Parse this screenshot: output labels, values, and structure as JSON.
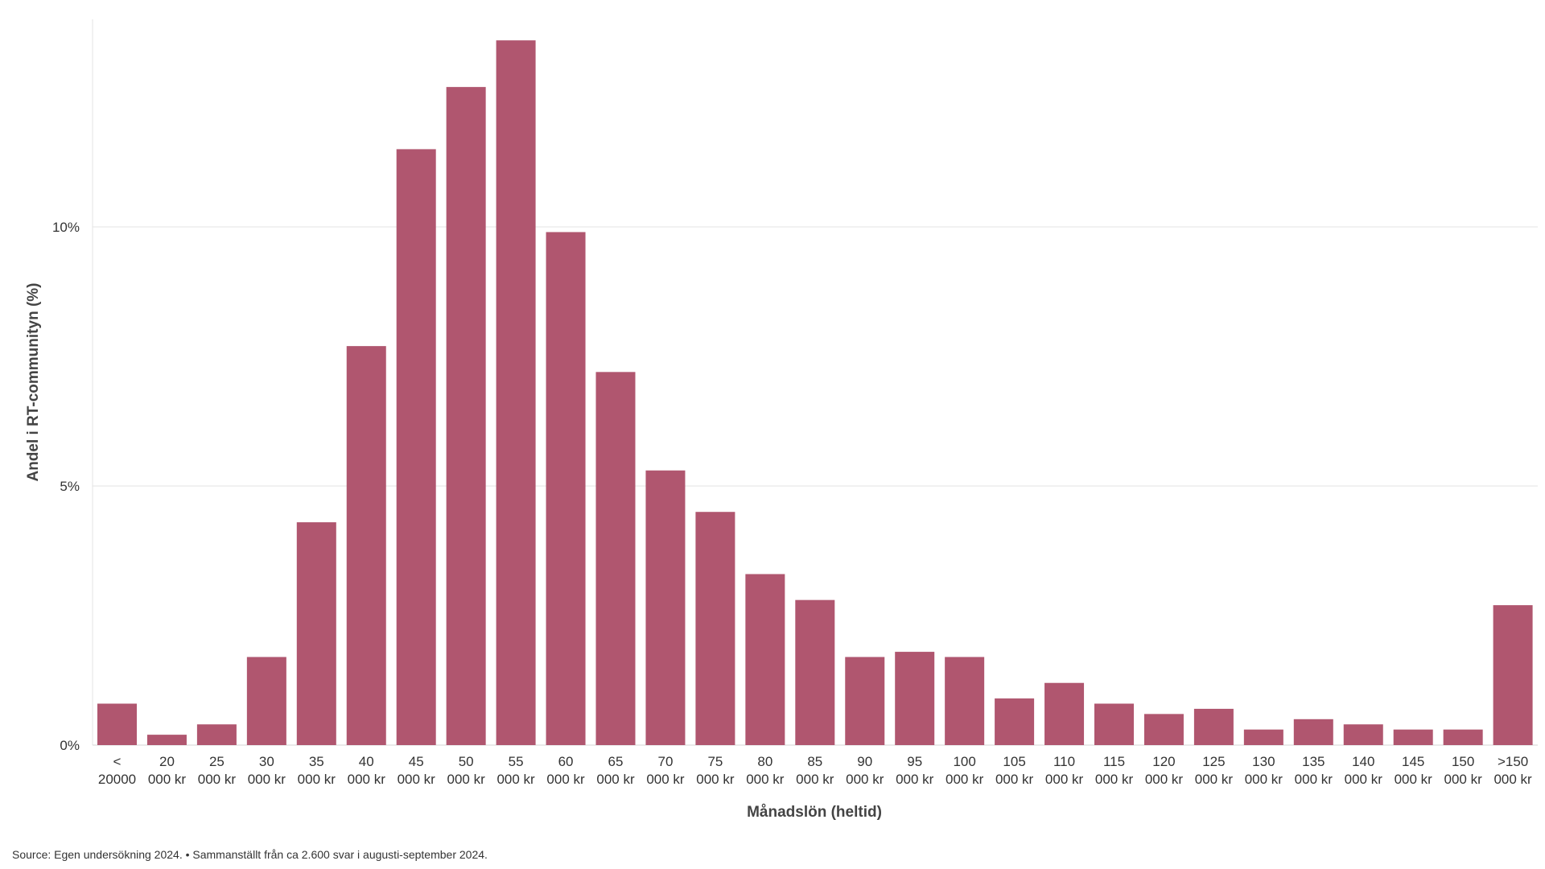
{
  "chart_data": {
    "type": "bar",
    "categories": [
      [
        "<",
        "20000"
      ],
      [
        "20",
        "000 kr"
      ],
      [
        "25",
        "000 kr"
      ],
      [
        "30",
        "000 kr"
      ],
      [
        "35",
        "000 kr"
      ],
      [
        "40",
        "000 kr"
      ],
      [
        "45",
        "000 kr"
      ],
      [
        "50",
        "000 kr"
      ],
      [
        "55",
        "000 kr"
      ],
      [
        "60",
        "000 kr"
      ],
      [
        "65",
        "000 kr"
      ],
      [
        "70",
        "000 kr"
      ],
      [
        "75",
        "000 kr"
      ],
      [
        "80",
        "000 kr"
      ],
      [
        "85",
        "000 kr"
      ],
      [
        "90",
        "000 kr"
      ],
      [
        "95",
        "000 kr"
      ],
      [
        "100",
        "000 kr"
      ],
      [
        "105",
        "000 kr"
      ],
      [
        "110",
        "000 kr"
      ],
      [
        "115",
        "000 kr"
      ],
      [
        "120",
        "000 kr"
      ],
      [
        "125",
        "000 kr"
      ],
      [
        "130",
        "000 kr"
      ],
      [
        "135",
        "000 kr"
      ],
      [
        "140",
        "000 kr"
      ],
      [
        "145",
        "000 kr"
      ],
      [
        "150",
        "000 kr"
      ],
      [
        ">150",
        "000 kr"
      ]
    ],
    "values": [
      0.8,
      0.2,
      0.4,
      1.7,
      4.3,
      7.7,
      11.5,
      12.7,
      13.6,
      9.9,
      7.2,
      5.3,
      4.5,
      3.3,
      2.8,
      1.7,
      1.8,
      1.7,
      0.9,
      1.2,
      0.8,
      0.6,
      0.7,
      0.3,
      0.5,
      0.4,
      0.3,
      0.3,
      2.7
    ],
    "xlabel": "Månadslön (heltid)",
    "ylabel": "Andel i RT-communityn (%)",
    "ylim": [
      0,
      14
    ],
    "yticks": [
      0,
      5,
      10
    ],
    "ytick_labels": [
      "0%",
      "5%",
      "10%"
    ],
    "grid": true,
    "bar_color": "#b0566f"
  },
  "source_note": "Source: Egen undersökning 2024. • Sammanställt från ca 2.600 svar i augusti-september 2024."
}
